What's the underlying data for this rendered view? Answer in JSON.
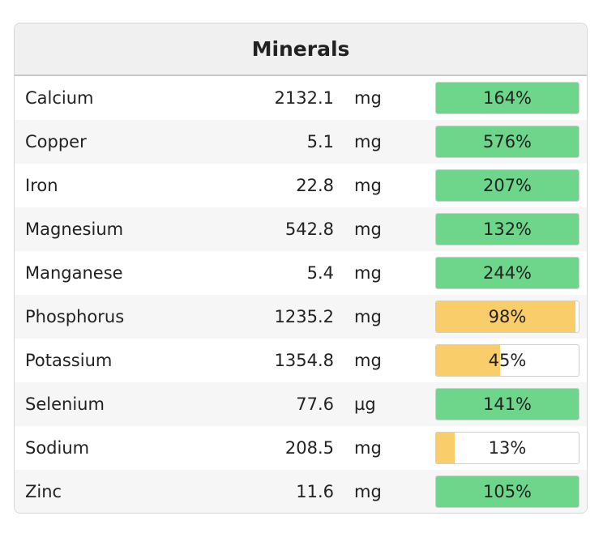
{
  "panel": {
    "title": "Minerals",
    "colors": {
      "above": "#6dd68b",
      "below": "#f8cd6a"
    },
    "rows": [
      {
        "name": "Calcium",
        "amount": "2132.1",
        "unit": "mg",
        "percent_label": "164%",
        "percent": 164
      },
      {
        "name": "Copper",
        "amount": "5.1",
        "unit": "mg",
        "percent_label": "576%",
        "percent": 576
      },
      {
        "name": "Iron",
        "amount": "22.8",
        "unit": "mg",
        "percent_label": "207%",
        "percent": 207
      },
      {
        "name": "Magnesium",
        "amount": "542.8",
        "unit": "mg",
        "percent_label": "132%",
        "percent": 132
      },
      {
        "name": "Manganese",
        "amount": "5.4",
        "unit": "mg",
        "percent_label": "244%",
        "percent": 244
      },
      {
        "name": "Phosphorus",
        "amount": "1235.2",
        "unit": "mg",
        "percent_label": "98%",
        "percent": 98
      },
      {
        "name": "Potassium",
        "amount": "1354.8",
        "unit": "mg",
        "percent_label": "45%",
        "percent": 45
      },
      {
        "name": "Selenium",
        "amount": "77.6",
        "unit": "µg",
        "percent_label": "141%",
        "percent": 141
      },
      {
        "name": "Sodium",
        "amount": "208.5",
        "unit": "mg",
        "percent_label": "13%",
        "percent": 13
      },
      {
        "name": "Zinc",
        "amount": "11.6",
        "unit": "mg",
        "percent_label": "105%",
        "percent": 105
      }
    ]
  }
}
